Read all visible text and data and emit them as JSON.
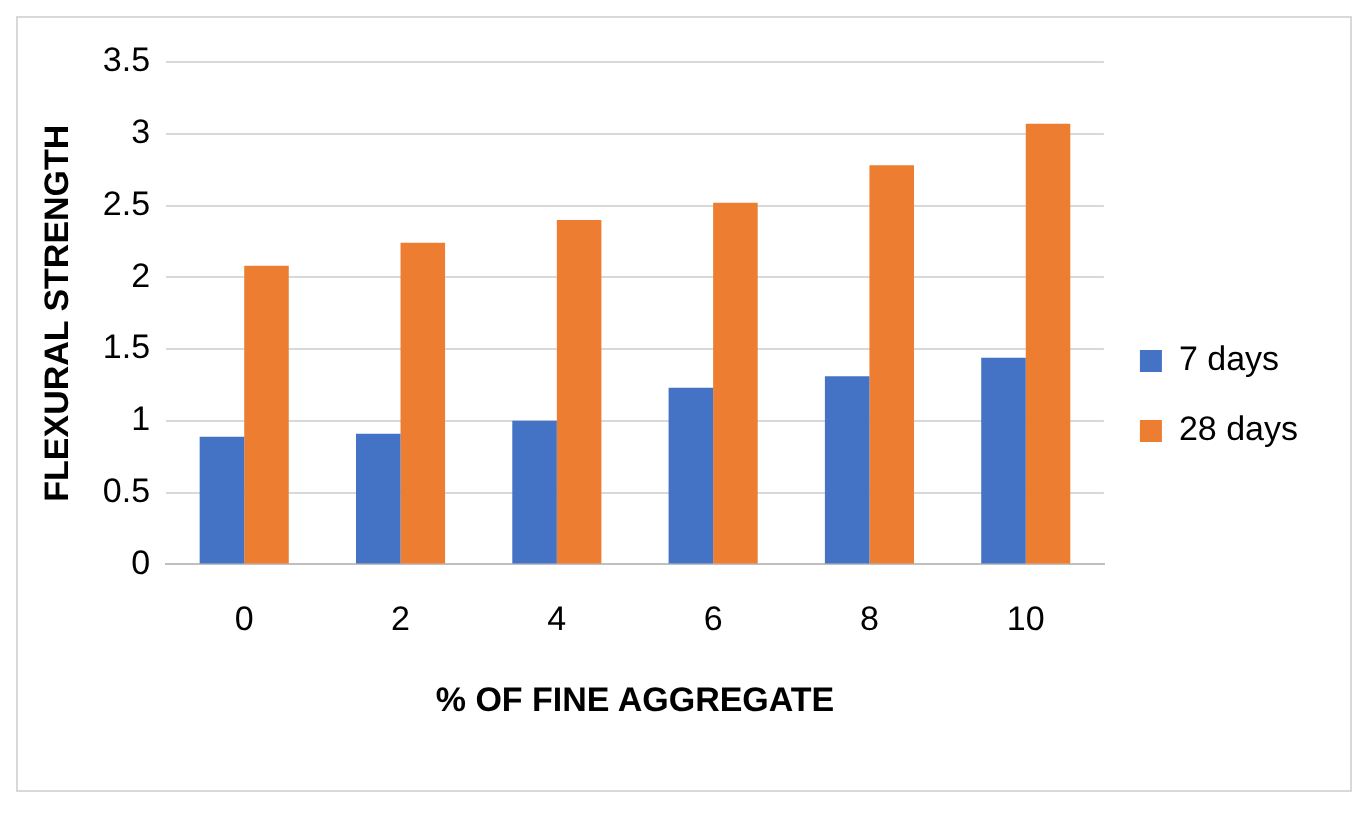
{
  "chart_data": {
    "type": "bar",
    "xlabel": "% OF FINE AGGREGATE",
    "ylabel": "FLEXURAL STRENGTH",
    "categories": [
      "0",
      "2",
      "4",
      "6",
      "8",
      "10"
    ],
    "series": [
      {
        "name": "7 days",
        "color": "#4472c4",
        "values": [
          0.89,
          0.91,
          1.0,
          1.23,
          1.31,
          1.44
        ]
      },
      {
        "name": "28 days",
        "color": "#ed7d31",
        "values": [
          2.08,
          2.24,
          2.4,
          2.52,
          2.78,
          3.07
        ]
      }
    ],
    "ylim": [
      0,
      3.5
    ],
    "yticks": [
      0,
      0.5,
      1,
      1.5,
      2,
      2.5,
      3,
      3.5
    ],
    "grid": "y",
    "legend": "right"
  }
}
